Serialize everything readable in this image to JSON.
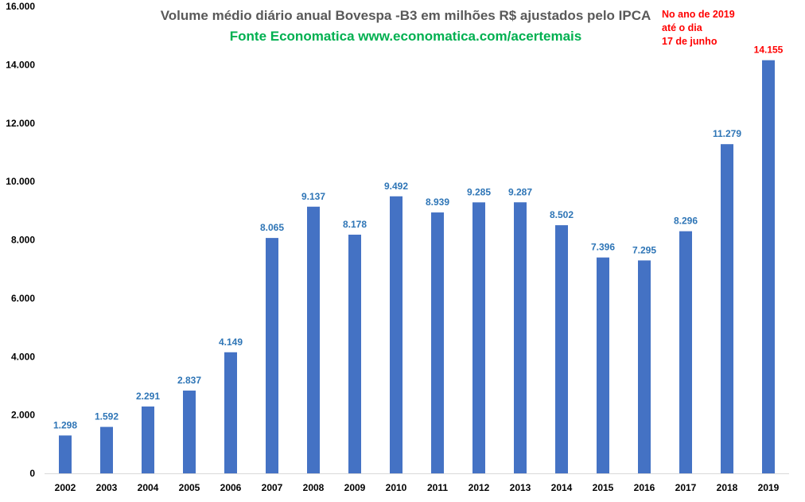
{
  "chart_data": {
    "type": "bar",
    "title": "Volume médio diário anual  Bovespa -B3 em milhões R$ ajustados pelo IPCA",
    "subtitle": "Fonte Economatica www.economatica.com/acertemais",
    "annotation": [
      "No ano de 2019",
      "até o dia",
      "17 de junho"
    ],
    "categories": [
      "2002",
      "2003",
      "2004",
      "2005",
      "2006",
      "2007",
      "2008",
      "2009",
      "2010",
      "2011",
      "2012",
      "2013",
      "2014",
      "2015",
      "2016",
      "2017",
      "2018",
      "2019"
    ],
    "values": [
      1298,
      1592,
      2291,
      2837,
      4149,
      8065,
      9137,
      8178,
      9492,
      8939,
      9285,
      9287,
      8502,
      7396,
      7295,
      8296,
      11279,
      14155
    ],
    "data_labels": [
      "1.298",
      "1.592",
      "2.291",
      "2.837",
      "4.149",
      "8.065",
      "9.137",
      "8.178",
      "9.492",
      "8.939",
      "9.285",
      "9.287",
      "8.502",
      "7.396",
      "7.295",
      "8.296",
      "11.279",
      "14.155"
    ],
    "y_ticks": [
      0,
      2000,
      4000,
      6000,
      8000,
      10000,
      12000,
      14000,
      16000
    ],
    "y_tick_labels": [
      "0",
      "2.000",
      "4.000",
      "6.000",
      "8.000",
      "10.000",
      "12.000",
      "14.000",
      "16.000"
    ],
    "ylim": [
      0,
      16000
    ],
    "xlabel": "",
    "ylabel": "",
    "grid": false,
    "colors": {
      "bar": "#4472c4",
      "label": "#2e75b6",
      "highlight_label": "#ff0000",
      "axis": "#d9d9d9",
      "tick_text": "#000000"
    },
    "highlight_index": 17
  }
}
